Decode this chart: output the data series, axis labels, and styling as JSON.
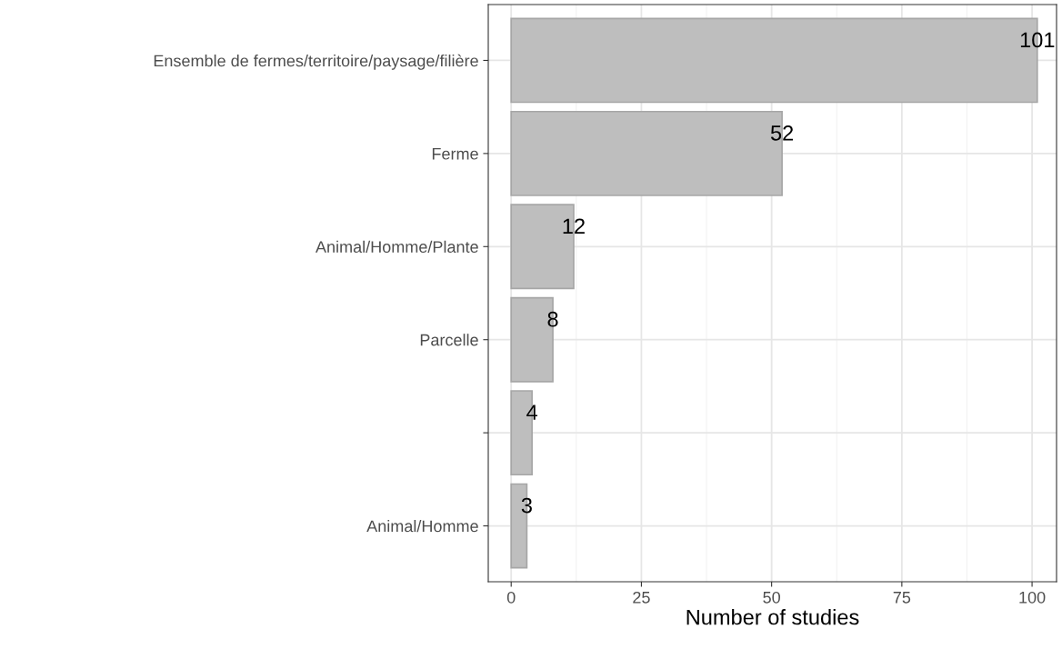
{
  "chart_data": {
    "type": "bar",
    "orientation": "horizontal",
    "xlabel": "Number of studies",
    "categories": [
      "Ensemble de fermes/territoire/paysage/filière",
      "Ferme",
      "Animal/Homme/Plante",
      "Parcelle",
      null,
      "Animal/Homme"
    ],
    "values": [
      101,
      52,
      12,
      8,
      4,
      3
    ],
    "color": "#bebebe",
    "xlim": [
      -4.4,
      104.7
    ],
    "xticks": [
      0,
      25,
      50,
      75,
      100
    ],
    "grid": true,
    "data_labels": true
  }
}
